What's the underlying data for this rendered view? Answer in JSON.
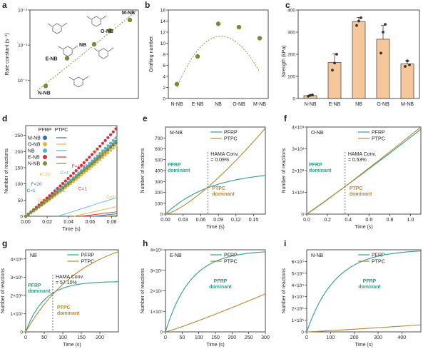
{
  "panel_letters": [
    "a",
    "b",
    "c",
    "d",
    "e",
    "f",
    "g",
    "h",
    "i"
  ],
  "colors": {
    "olive": "#7d8a35",
    "pfrp": "#2e9e8a",
    "ptpc": "#b9882e",
    "bar": "#f6c79b",
    "bar_edge": "#3a3a3a",
    "grid": "#cccccc"
  },
  "chart_data": [
    {
      "id": "a",
      "type": "scatter",
      "ylabel": "Rate constant (s⁻¹)",
      "yscale": "log",
      "ylim": [
        3e-05,
        0.01
      ],
      "yticks": [
        "10⁻⁴",
        "10⁻³",
        "10⁻²"
      ],
      "points": [
        {
          "label": "N-NB",
          "y": 6.8e-05
        },
        {
          "label": "E-NB",
          "y": 0.00042
        },
        {
          "label": "NB",
          "y": 0.00105
        },
        {
          "label": "O-NB",
          "y": 0.0026
        },
        {
          "label": "M-NB",
          "y": 0.0052
        }
      ]
    },
    {
      "id": "b",
      "type": "scatter",
      "ylabel": "Grafting number",
      "ylim": [
        0,
        16
      ],
      "yticks": [
        "0",
        "2",
        "4",
        "6",
        "8",
        "10",
        "12",
        "14",
        "16"
      ],
      "categories": [
        "N-NB",
        "E-NB",
        "NB",
        "O-NB",
        "M-NB"
      ],
      "values": [
        2.6,
        7.6,
        13.5,
        12.9,
        10.9
      ]
    },
    {
      "id": "c",
      "type": "bar",
      "ylabel": "Strength (kPa)",
      "ylim": [
        0,
        400
      ],
      "yticks": [
        "0",
        "100",
        "200",
        "300",
        "400"
      ],
      "categories": [
        "N-NB",
        "E-NB",
        "NB",
        "O-NB",
        "M-NB"
      ],
      "values": [
        13,
        163,
        348,
        268,
        156
      ],
      "errors": [
        3,
        38,
        18,
        62,
        15
      ],
      "points": [
        [
          10,
          14,
          16
        ],
        [
          128,
          160,
          200
        ],
        [
          330,
          350,
          365
        ],
        [
          205,
          300,
          335
        ],
        [
          145,
          170,
          152
        ]
      ]
    },
    {
      "id": "d",
      "type": "line",
      "xlabel": "Time (s)",
      "ylabel": "Number of reactions",
      "xlim": [
        0,
        0.085
      ],
      "ylim": [
        0,
        280
      ],
      "xticks": [
        "0.00",
        "0.02",
        "0.04",
        "0.06",
        "0.08"
      ],
      "yticks": [
        "0",
        "50",
        "100",
        "150",
        "200",
        "250"
      ],
      "legend_header": [
        "PFRP",
        "PTPC"
      ],
      "series": [
        {
          "name": "M-NB",
          "color": "#2e6fb0",
          "end_pfrp": 228,
          "end_ptpc": 8
        },
        {
          "name": "O-NB",
          "color": "#e9b43a",
          "end_pfrp": 218,
          "end_ptpc": 30
        },
        {
          "name": "NB",
          "color": "#58b2d6",
          "end_pfrp": 242,
          "end_ptpc": 58
        },
        {
          "name": "E-NB",
          "color": "#d6303a",
          "end_pfrp": 270,
          "end_ptpc": 14
        },
        {
          "name": "N-NB",
          "color": "#77933c",
          "end_pfrp": 232,
          "end_ptpc": 2
        }
      ],
      "annotations": [
        "C=1",
        "F=20",
        "C=1",
        "F=22",
        "F=41",
        "C=1",
        "F=104",
        "C=1",
        "F=178",
        "C=1"
      ]
    },
    {
      "id": "e",
      "type": "line",
      "title": "M-NB",
      "xlabel": "Time (s)",
      "ylabel": "Number of reactions",
      "xlim": [
        0,
        0.17
      ],
      "ylim": [
        0,
        800
      ],
      "xticks": [
        "0.00",
        "0.03",
        "0.06",
        "0.09",
        "0.12",
        "0.15"
      ],
      "yticks": [
        "0",
        "100",
        "200",
        "300",
        "400",
        "500",
        "600",
        "700"
      ],
      "series": [
        {
          "name": "PFRP",
          "end": 355
        },
        {
          "name": "PTPC",
          "end": 790
        }
      ],
      "cross_x": 0.072,
      "cross_y": 190,
      "annotation": "HAMA Conv.\n= 0.09%",
      "label_pfrp": "PFRP\ndominant",
      "label_ptpc": "PTPC\ndominant"
    },
    {
      "id": "f",
      "type": "line",
      "title": "O-NB",
      "xlabel": "Time (s)",
      "ylabel": "Number of reactions",
      "xlim": [
        0,
        1.1
      ],
      "ylim": [
        0,
        4000
      ],
      "xticks": [
        "0.0",
        "0.2",
        "0.4",
        "0.6",
        "0.8",
        "1.0"
      ],
      "yticks": [
        "0",
        "1×10³",
        "2×10³",
        "3×10³",
        "4×10³"
      ],
      "series": [
        {
          "name": "PFRP",
          "end": 3900
        },
        {
          "name": "PTPC",
          "end": 4000
        }
      ],
      "cross_x": 0.37,
      "cross_y": 1200,
      "annotation": "HAMA Conv.\n= 0.53%",
      "label_pfrp": "PFRP\ndominant",
      "label_ptpc": "PTPC\ndominant"
    },
    {
      "id": "g",
      "type": "line",
      "title": "NB",
      "xlabel": "Time (s)",
      "ylabel": "Number of reactions",
      "xlim": [
        0,
        250
      ],
      "ylim": [
        0,
        450000
      ],
      "xticks": [
        "0",
        "50",
        "100",
        "150",
        "200"
      ],
      "yticks": [
        "0",
        "1×10⁵",
        "2×10⁵",
        "3×10⁵",
        "4×10⁵"
      ],
      "series": [
        {
          "name": "PFRP",
          "end": 275000
        },
        {
          "name": "PTPC",
          "end": 440000
        }
      ],
      "cross_x": 73,
      "cross_y": 178000,
      "annotation": "HAMA Conv.\n= 57.10%",
      "label_pfrp": "PFRP\ndominant",
      "label_ptpc": "PTPC\ndominant"
    },
    {
      "id": "h",
      "type": "line",
      "title": "E-NB",
      "xlabel": "Time (s)",
      "ylabel": "Number of reactions",
      "xlim": [
        0,
        300
      ],
      "ylim": [
        0,
        400000
      ],
      "xticks": [
        "0",
        "50",
        "100",
        "150",
        "200",
        "250",
        "300"
      ],
      "yticks": [
        "0",
        "1×10⁵",
        "2×10⁵",
        "3×10⁵",
        "4×10⁵"
      ],
      "series": [
        {
          "name": "PFRP",
          "end": 390000
        },
        {
          "name": "PTPC",
          "end": 185000
        }
      ],
      "label_pfrp": "PFRP\ndominant"
    },
    {
      "id": "i",
      "type": "line",
      "title": "N-NB",
      "xlabel": "Time (s)",
      "ylabel": "Number of reactions",
      "xlim": [
        0,
        480
      ],
      "ylim": [
        0,
        700000
      ],
      "xticks": [
        "0",
        "100",
        "200",
        "300",
        "400"
      ],
      "yticks": [
        "0",
        "1×10⁵",
        "2×10⁵",
        "3×10⁵",
        "4×10⁵",
        "5×10⁵",
        "6×10⁵"
      ],
      "series": [
        {
          "name": "PFRP",
          "end": 690000
        },
        {
          "name": "PTPC",
          "end": 60000
        }
      ],
      "label_pfrp": "PFRP\ndominant"
    }
  ]
}
